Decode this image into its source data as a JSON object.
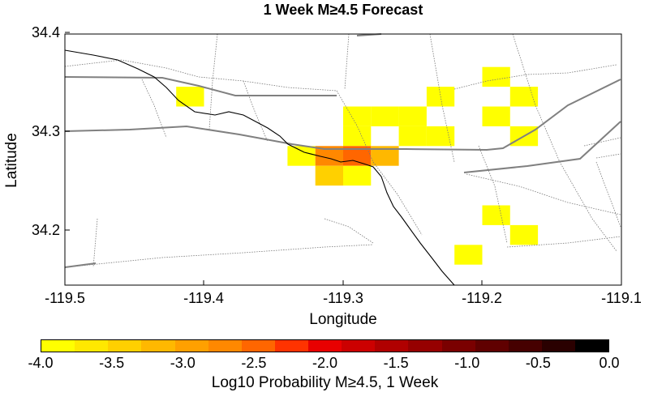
{
  "title": "1 Week M≥4.5 Forecast",
  "axes": {
    "xlabel": "Longitude",
    "ylabel": "Latitude",
    "xlim": [
      -119.5,
      -119.1
    ],
    "ylim": [
      34.145,
      34.4
    ],
    "xticks": [
      "-119.5",
      "-119.4",
      "-119.3",
      "-119.2",
      "-119.1"
    ],
    "xtick_values": [
      -119.5,
      -119.4,
      -119.3,
      -119.2,
      -119.1
    ],
    "yticks": [
      "34.4",
      "34.3",
      "34.2"
    ],
    "ytick_values": [
      34.4,
      34.3,
      34.2
    ]
  },
  "colorbar": {
    "label": "Log10 Probability M≥4.5, 1 Week",
    "ticks": [
      "-4.0",
      "-3.5",
      "-3.0",
      "-2.5",
      "-2.0",
      "-1.5",
      "-1.0",
      "-0.5",
      "0.0"
    ],
    "tick_values": [
      -4.0,
      -3.5,
      -3.0,
      -2.5,
      -2.0,
      -1.5,
      -1.0,
      -0.5,
      0.0
    ],
    "colors": [
      "#ffff00",
      "#ffe800",
      "#ffd000",
      "#ffb800",
      "#ffa000",
      "#ff8800",
      "#ff6600",
      "#ff3300",
      "#e80000",
      "#cc0000",
      "#b00000",
      "#960000",
      "#7a0000",
      "#600000",
      "#460000",
      "#2a0000",
      "#000000"
    ]
  },
  "chart_data": {
    "type": "heatmap",
    "title": "1 Week M≥4.5 Forecast",
    "xlabel": "Longitude",
    "ylabel": "Latitude",
    "cell_size_deg": 0.02,
    "value_label": "Log10 Probability M≥4.5, 1 Week",
    "cells": [
      {
        "lon": -119.41,
        "lat": 34.335,
        "value": -4.0
      },
      {
        "lon": -119.29,
        "lat": 34.315,
        "value": -4.0
      },
      {
        "lon": -119.27,
        "lat": 34.315,
        "value": -4.0
      },
      {
        "lon": -119.25,
        "lat": 34.315,
        "value": -4.0
      },
      {
        "lon": -119.23,
        "lat": 34.335,
        "value": -4.0
      },
      {
        "lon": -119.29,
        "lat": 34.295,
        "value": -4.0
      },
      {
        "lon": -119.25,
        "lat": 34.295,
        "value": -4.0
      },
      {
        "lon": -119.23,
        "lat": 34.295,
        "value": -4.0
      },
      {
        "lon": -119.33,
        "lat": 34.275,
        "value": -3.8
      },
      {
        "lon": -119.31,
        "lat": 34.275,
        "value": -2.8
      },
      {
        "lon": -119.29,
        "lat": 34.275,
        "value": -2.55
      },
      {
        "lon": -119.27,
        "lat": 34.275,
        "value": -3.1
      },
      {
        "lon": -119.31,
        "lat": 34.255,
        "value": -3.4
      },
      {
        "lon": -119.29,
        "lat": 34.255,
        "value": -3.9
      },
      {
        "lon": -119.19,
        "lat": 34.355,
        "value": -4.0
      },
      {
        "lon": -119.17,
        "lat": 34.335,
        "value": -4.0
      },
      {
        "lon": -119.19,
        "lat": 34.315,
        "value": -4.0
      },
      {
        "lon": -119.17,
        "lat": 34.295,
        "value": -4.0
      },
      {
        "lon": -119.19,
        "lat": 34.215,
        "value": -4.0
      },
      {
        "lon": -119.17,
        "lat": 34.195,
        "value": -4.0
      },
      {
        "lon": -119.21,
        "lat": 34.175,
        "value": -4.0
      }
    ]
  }
}
